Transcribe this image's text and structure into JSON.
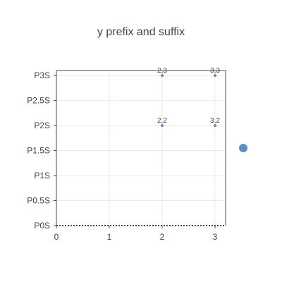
{
  "chart_data": {
    "type": "scatter",
    "title": "y prefix and suffix",
    "y_prefix": "P",
    "y_suffix": "S",
    "xlim": [
      0,
      3.2
    ],
    "ylim": [
      0,
      3.1
    ],
    "x_ticks": [
      "0",
      "1",
      "2",
      "3"
    ],
    "x_tick_values": [
      0,
      1,
      2,
      3
    ],
    "y_ticks": [
      "P0S",
      "P0.5S",
      "P1S",
      "P1.5S",
      "P2S",
      "P2.5S",
      "P3S"
    ],
    "y_tick_values": [
      0,
      0.5,
      1,
      1.5,
      2,
      2.5,
      3
    ],
    "grid": true,
    "legend": "right",
    "series": [
      {
        "color": "#5b8fc7",
        "points": [
          {
            "x": 2,
            "y": 3,
            "label": "2,3"
          },
          {
            "x": 3,
            "y": 3,
            "label": "3,3"
          },
          {
            "x": 2,
            "y": 2,
            "label": "2,2"
          },
          {
            "x": 3,
            "y": 2,
            "label": "3,2"
          }
        ]
      }
    ]
  }
}
